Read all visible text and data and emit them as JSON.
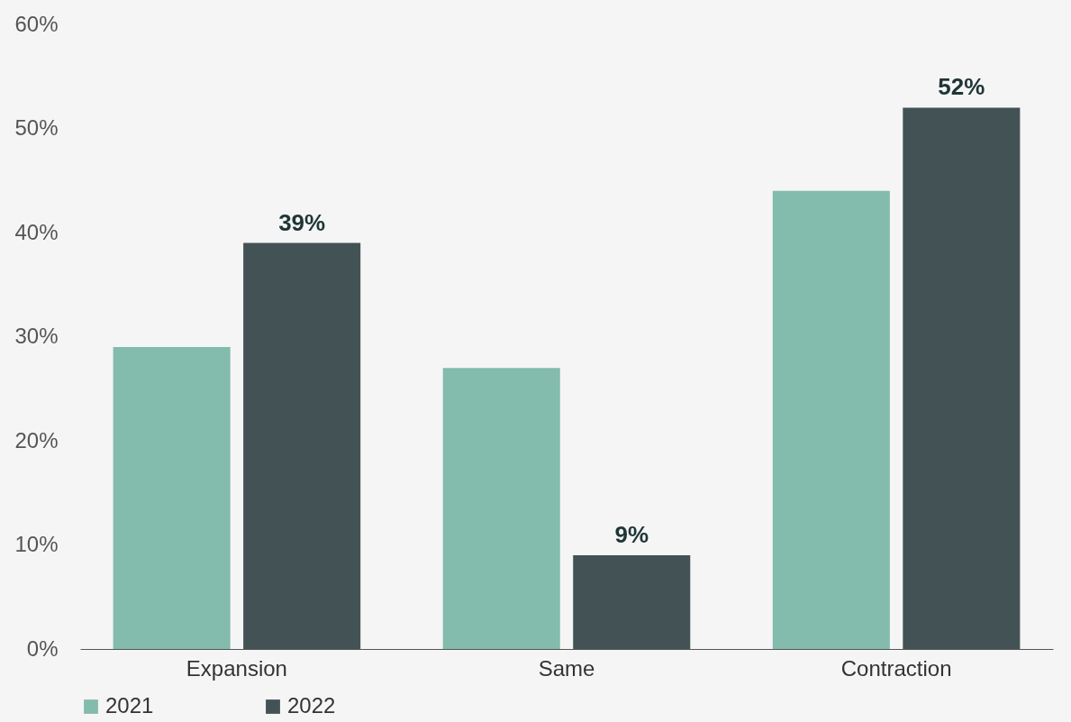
{
  "chart_data": {
    "type": "bar",
    "categories": [
      "Expansion",
      "Same",
      "Contraction"
    ],
    "series": [
      {
        "name": "2021",
        "color": "#83bbad",
        "values": [
          29,
          27,
          44
        ],
        "value_labels": [
          null,
          null,
          null
        ]
      },
      {
        "name": "2022",
        "color": "#435255",
        "values": [
          39,
          9,
          52
        ],
        "value_labels": [
          "39%",
          "9%",
          "52%"
        ]
      }
    ],
    "ylim": [
      0,
      60
    ],
    "yticks": [
      {
        "value": 0,
        "label": "0%"
      },
      {
        "value": 10,
        "label": "10%"
      },
      {
        "value": 20,
        "label": "20%"
      },
      {
        "value": 30,
        "label": "30%"
      },
      {
        "value": 40,
        "label": "40%"
      },
      {
        "value": 50,
        "label": "50%"
      },
      {
        "value": 60,
        "label": "60%"
      }
    ],
    "grid": false,
    "legend": "bottom"
  }
}
